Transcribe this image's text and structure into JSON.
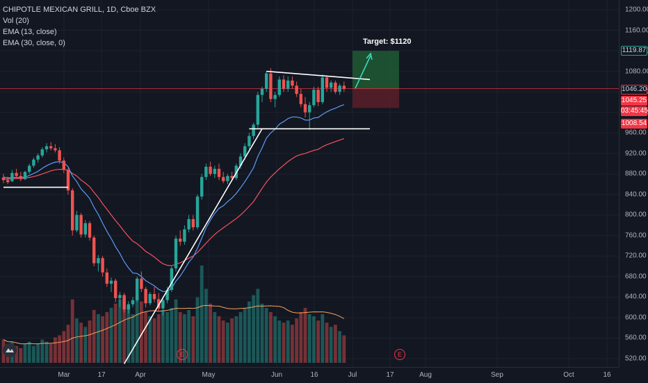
{
  "legend": {
    "symbol_line": "CHIPOTLE MEXICAN GRILL, 1D, Cboe BZX",
    "vol_line": "Vol (20)",
    "ema13_line": "EMA (13, close)",
    "ema30_line": "EMA (30, close, 0)"
  },
  "annotations": {
    "target_label": "Target: $1120",
    "event_marker": "E"
  },
  "price_scale": {
    "ticks": [
      "1200.00",
      "1160.00",
      "1120.00",
      "1080.00",
      "1040.00",
      "1000.00",
      "960.00",
      "920.00",
      "880.00",
      "840.00",
      "800.00",
      "760.00",
      "720.00",
      "680.00",
      "640.00",
      "600.00",
      "560.00",
      "520.00"
    ],
    "badges": {
      "target": "1119.87",
      "last": "1046.20",
      "price2": "1045.25",
      "countdown": "03:45:45",
      "stop": "1008.54"
    }
  },
  "time_scale": {
    "labels": [
      "Mar",
      "17",
      "Apr",
      "May",
      "Jun",
      "16",
      "Jul",
      "17",
      "Aug",
      "Sep",
      "Oct",
      "16"
    ]
  },
  "colors": {
    "background": "#131722",
    "up": "#26a69a",
    "down": "#ef5350",
    "ema13": "#5b9cf6",
    "ema30": "#f7525f",
    "trendline": "#ffffff",
    "target_zone": "#1e5a33",
    "stop_zone": "#5a1f28",
    "last_price_line": "#f23645"
  },
  "chart_data": {
    "type": "candlestick",
    "title": "CHIPOTLE MEXICAN GRILL, 1D, Cboe BZX",
    "ylim": [
      510,
      1220
    ],
    "grid": true,
    "candles": [
      [
        873,
        880,
        862,
        868
      ],
      [
        868,
        875,
        860,
        864
      ],
      [
        866,
        888,
        864,
        882
      ],
      [
        882,
        890,
        872,
        876
      ],
      [
        876,
        884,
        866,
        870
      ],
      [
        870,
        886,
        868,
        884
      ],
      [
        884,
        900,
        880,
        896
      ],
      [
        896,
        912,
        892,
        908
      ],
      [
        908,
        920,
        902,
        916
      ],
      [
        916,
        932,
        912,
        928
      ],
      [
        928,
        940,
        922,
        934
      ],
      [
        934,
        942,
        926,
        930
      ],
      [
        930,
        938,
        922,
        926
      ],
      [
        926,
        932,
        900,
        906
      ],
      [
        906,
        912,
        882,
        888
      ],
      [
        888,
        892,
        840,
        848
      ],
      [
        848,
        852,
        760,
        770
      ],
      [
        770,
        808,
        766,
        800
      ],
      [
        800,
        804,
        756,
        762
      ],
      [
        762,
        790,
        756,
        784
      ],
      [
        784,
        788,
        750,
        756
      ],
      [
        756,
        760,
        700,
        706
      ],
      [
        706,
        722,
        690,
        716
      ],
      [
        716,
        720,
        680,
        688
      ],
      [
        688,
        696,
        660,
        666
      ],
      [
        666,
        678,
        650,
        672
      ],
      [
        672,
        676,
        630,
        638
      ],
      [
        638,
        650,
        620,
        644
      ],
      [
        644,
        648,
        610,
        616
      ],
      [
        616,
        632,
        608,
        626
      ],
      [
        626,
        640,
        620,
        634
      ],
      [
        634,
        680,
        630,
        676
      ],
      [
        676,
        690,
        650,
        656
      ],
      [
        656,
        660,
        620,
        628
      ],
      [
        628,
        650,
        624,
        646
      ],
      [
        646,
        660,
        630,
        636
      ],
      [
        636,
        648,
        612,
        618
      ],
      [
        618,
        640,
        604,
        634
      ],
      [
        634,
        660,
        628,
        654
      ],
      [
        654,
        700,
        650,
        696
      ],
      [
        696,
        760,
        690,
        754
      ],
      [
        754,
        770,
        740,
        748
      ],
      [
        748,
        780,
        742,
        772
      ],
      [
        772,
        800,
        766,
        792
      ],
      [
        792,
        800,
        770,
        776
      ],
      [
        776,
        840,
        772,
        836
      ],
      [
        836,
        880,
        830,
        874
      ],
      [
        874,
        900,
        868,
        894
      ],
      [
        894,
        904,
        876,
        880
      ],
      [
        880,
        896,
        872,
        890
      ],
      [
        890,
        900,
        868,
        874
      ],
      [
        874,
        884,
        862,
        866
      ],
      [
        866,
        880,
        860,
        876
      ],
      [
        876,
        884,
        866,
        872
      ],
      [
        872,
        900,
        868,
        896
      ],
      [
        896,
        920,
        890,
        914
      ],
      [
        914,
        940,
        908,
        934
      ],
      [
        934,
        960,
        928,
        954
      ],
      [
        954,
        980,
        948,
        976
      ],
      [
        976,
        1040,
        970,
        1034
      ],
      [
        1034,
        1050,
        1020,
        1046
      ],
      [
        1046,
        1080,
        1040,
        1076
      ],
      [
        1076,
        1086,
        1020,
        1026
      ],
      [
        1026,
        1040,
        1010,
        1034
      ],
      [
        1034,
        1070,
        1030,
        1064
      ],
      [
        1064,
        1072,
        1040,
        1046
      ],
      [
        1046,
        1070,
        1040,
        1062
      ],
      [
        1062,
        1070,
        1046,
        1052
      ],
      [
        1052,
        1060,
        1030,
        1036
      ],
      [
        1036,
        1046,
        1010,
        1016
      ],
      [
        1016,
        1030,
        990,
        1000
      ],
      [
        1000,
        1020,
        966,
        1014
      ],
      [
        1014,
        1050,
        1010,
        1044
      ],
      [
        1044,
        1050,
        1012,
        1020
      ],
      [
        1020,
        1074,
        1016,
        1068
      ],
      [
        1068,
        1072,
        1040,
        1048
      ],
      [
        1048,
        1062,
        1040,
        1058
      ],
      [
        1058,
        1062,
        1036,
        1040
      ],
      [
        1040,
        1056,
        1034,
        1052
      ],
      [
        1052,
        1060,
        1040,
        1046
      ]
    ],
    "volume": [
      22,
      18,
      20,
      16,
      14,
      18,
      20,
      16,
      18,
      22,
      20,
      18,
      24,
      26,
      30,
      36,
      60,
      42,
      38,
      34,
      40,
      50,
      46,
      44,
      48,
      52,
      56,
      60,
      62,
      54,
      46,
      64,
      58,
      48,
      44,
      42,
      46,
      50,
      48,
      52,
      60,
      48,
      46,
      50,
      44,
      62,
      92,
      70,
      56,
      48,
      44,
      40,
      38,
      42,
      44,
      48,
      52,
      58,
      64,
      70,
      56,
      52,
      48,
      44,
      40,
      38,
      40,
      36,
      42,
      48,
      52,
      46,
      44,
      40,
      46,
      38,
      34,
      36,
      30,
      26
    ],
    "ema13": [
      874,
      872,
      873,
      873,
      873,
      874,
      877,
      881,
      885,
      891,
      896,
      900,
      903,
      904,
      902,
      894,
      876,
      865,
      851,
      842,
      832,
      815,
      801,
      784,
      768,
      754,
      738,
      725,
      709,
      697,
      687,
      686,
      680,
      672,
      667,
      662,
      655,
      651,
      651,
      657,
      671,
      681,
      694,
      708,
      718,
      735,
      755,
      775,
      790,
      803,
      813,
      818,
      826,
      833,
      842,
      853,
      865,
      878,
      892,
      914,
      931,
      950,
      960,
      967,
      977,
      982,
      988,
      991,
      991,
      989,
      985,
      985,
      989,
      990,
      996,
      1001,
      1005,
      1008,
      1012,
      1015
    ],
    "ema30": [
      870,
      870,
      871,
      871,
      871,
      872,
      873,
      875,
      877,
      880,
      883,
      886,
      888,
      889,
      889,
      887,
      881,
      876,
      868,
      862,
      855,
      844,
      834,
      822,
      811,
      800,
      789,
      779,
      768,
      758,
      749,
      744,
      737,
      729,
      724,
      718,
      711,
      705,
      702,
      701,
      704,
      707,
      711,
      716,
      720,
      727,
      736,
      745,
      754,
      762,
      769,
      775,
      781,
      787,
      793,
      800,
      808,
      817,
      826,
      839,
      852,
      864,
      874,
      882,
      890,
      897,
      904,
      910,
      915,
      918,
      920,
      923,
      926,
      928,
      933,
      937,
      940,
      943,
      946,
      949
    ],
    "pattern": {
      "upper_trendline": [
        [
          61,
          1080
        ],
        [
          85,
          1064
        ]
      ],
      "lower_trendline": [
        [
          57,
          968
        ],
        [
          85,
          968
        ]
      ],
      "rising_trendline": [
        [
          28,
          510
        ],
        [
          60,
          968
        ]
      ],
      "early_support": [
        [
          0,
          854
        ],
        [
          15,
          854
        ]
      ],
      "target": 1119.87,
      "entry": 1046.2,
      "stop": 1008.54
    }
  }
}
